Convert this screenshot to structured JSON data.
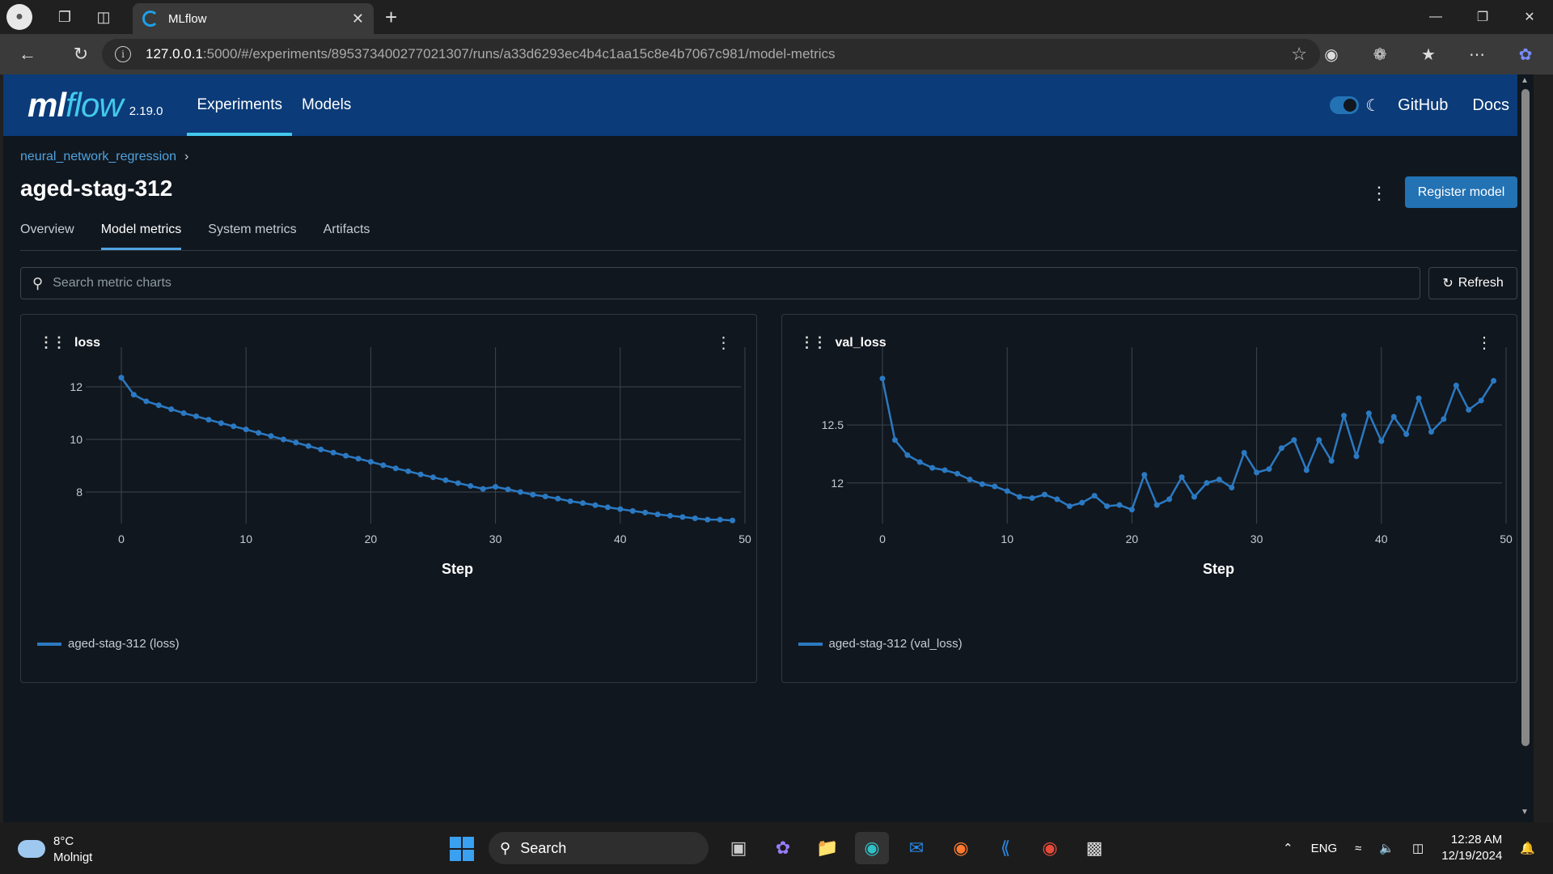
{
  "browser": {
    "tab_title": "MLflow",
    "url_host": "127.0.0.1",
    "url_rest": ":5000/#/experiments/895373400277021307/runs/a33d6293ec4b4c1aa15c8e4b7067c981/model-metrics"
  },
  "header": {
    "logo_ml": "ml",
    "logo_flow": "flow",
    "version": "2.19.0",
    "nav": [
      "Experiments",
      "Models"
    ],
    "github": "GitHub",
    "docs": "Docs"
  },
  "run": {
    "breadcrumb": "neural_network_regression",
    "title": "aged-stag-312",
    "register_label": "Register model"
  },
  "tabs": [
    "Overview",
    "Model metrics",
    "System metrics",
    "Artifacts"
  ],
  "search": {
    "placeholder": "Search metric charts",
    "refresh_label": "Refresh"
  },
  "charts": [
    {
      "title": "loss",
      "legend": "aged-stag-312 (loss)",
      "xlabel": "Step"
    },
    {
      "title": "val_loss",
      "legend": "aged-stag-312 (val_loss)",
      "xlabel": "Step"
    }
  ],
  "chart_data": [
    {
      "type": "line",
      "title": "loss",
      "xlabel": "Step",
      "ylabel": "",
      "xlim": [
        0,
        50
      ],
      "ylim": [
        6.8,
        13.2
      ],
      "xticks": [
        0,
        10,
        20,
        30,
        40,
        50
      ],
      "yticks": [
        8,
        10,
        12
      ],
      "color": "#2b79c2",
      "series": [
        {
          "name": "aged-stag-312 (loss)",
          "x": [
            0,
            1,
            2,
            3,
            4,
            5,
            6,
            7,
            8,
            9,
            10,
            11,
            12,
            13,
            14,
            15,
            16,
            17,
            18,
            19,
            20,
            21,
            22,
            23,
            24,
            25,
            26,
            27,
            28,
            29,
            30,
            31,
            32,
            33,
            34,
            35,
            36,
            37,
            38,
            39,
            40,
            41,
            42,
            43,
            44,
            45,
            46,
            47,
            48,
            49
          ],
          "values": [
            12.35,
            11.7,
            11.45,
            11.3,
            11.15,
            11.0,
            10.88,
            10.75,
            10.62,
            10.5,
            10.38,
            10.25,
            10.13,
            10.0,
            9.88,
            9.75,
            9.62,
            9.5,
            9.38,
            9.27,
            9.15,
            9.02,
            8.9,
            8.79,
            8.67,
            8.56,
            8.45,
            8.34,
            8.23,
            8.12,
            8.2,
            8.1,
            8.0,
            7.9,
            7.83,
            7.75,
            7.65,
            7.58,
            7.5,
            7.42,
            7.35,
            7.28,
            7.22,
            7.15,
            7.1,
            7.05,
            7.0,
            6.95,
            6.95,
            6.92
          ]
        }
      ]
    },
    {
      "type": "line",
      "title": "val_loss",
      "xlabel": "Step",
      "ylabel": "",
      "xlim": [
        0,
        50
      ],
      "ylim": [
        11.65,
        13.1
      ],
      "xticks": [
        0,
        10,
        20,
        30,
        40,
        50
      ],
      "yticks": [
        12,
        12.5
      ],
      "color": "#2b79c2",
      "series": [
        {
          "name": "aged-stag-312 (val_loss)",
          "x": [
            0,
            1,
            2,
            3,
            4,
            5,
            6,
            7,
            8,
            9,
            10,
            11,
            12,
            13,
            14,
            15,
            16,
            17,
            18,
            19,
            20,
            21,
            22,
            23,
            24,
            25,
            26,
            27,
            28,
            29,
            30,
            31,
            32,
            33,
            34,
            35,
            36,
            37,
            38,
            39,
            40,
            41,
            42,
            43,
            44,
            45,
            46,
            47,
            48,
            49
          ],
          "values": [
            12.9,
            12.37,
            12.24,
            12.18,
            12.13,
            12.11,
            12.08,
            12.03,
            11.99,
            11.97,
            11.93,
            11.88,
            11.87,
            11.9,
            11.86,
            11.8,
            11.83,
            11.89,
            11.8,
            11.81,
            11.77,
            12.07,
            11.81,
            11.86,
            12.05,
            11.88,
            12.0,
            12.03,
            11.96,
            12.26,
            12.09,
            12.12,
            12.3,
            12.37,
            12.11,
            12.37,
            12.19,
            12.58,
            12.23,
            12.6,
            12.36,
            12.57,
            12.42,
            12.73,
            12.44,
            12.55,
            12.84,
            12.63,
            12.71,
            12.88
          ]
        }
      ]
    }
  ],
  "taskbar": {
    "temp": "8°C",
    "weather": "Molnigt",
    "search": "Search",
    "lang": "ENG",
    "time": "12:28 AM",
    "date": "12/19/2024"
  }
}
